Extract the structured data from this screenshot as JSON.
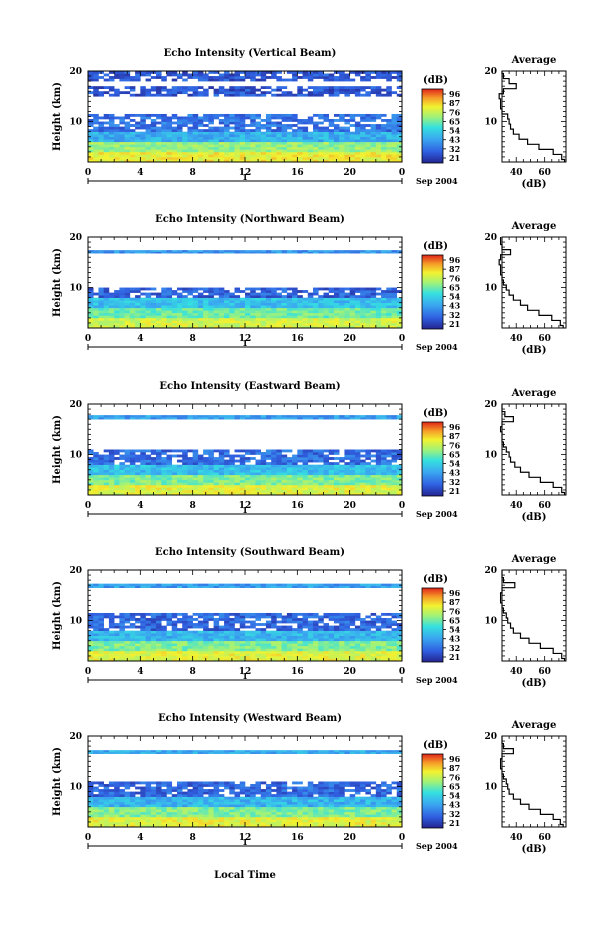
{
  "colorbar_unit": "(dB)",
  "colorbar_ticks": [
    "96",
    "87",
    "76",
    "65",
    "54",
    "43",
    "32",
    "21"
  ],
  "time_ticks": [
    "0",
    "4",
    "8",
    "12",
    "16",
    "20",
    "0"
  ],
  "date_label": "Sep 2004",
  "day_label": "1",
  "ylabel": "Height (km)",
  "xlabel": "Local Time",
  "avg_title": "Average",
  "avg_xlabel": "(dB)",
  "avg_xticks": [
    "40",
    "60"
  ],
  "colors": {
    "low": "#2a2aa8",
    "mid": "#33d6e6",
    "high": "#f2f230",
    "top": "#e6301e"
  },
  "chart_data": [
    {
      "type": "heatmap",
      "title": "Echo Intensity (Vertical Beam)",
      "x_unit": "hour (Local Time)",
      "xlim": [
        0,
        24
      ],
      "y_unit": "km",
      "ylim": [
        2,
        20
      ],
      "yticks": [
        10,
        20
      ],
      "color_range_db": [
        21,
        96
      ],
      "layers": [
        {
          "h0": 2,
          "h1": 4,
          "db": 76
        },
        {
          "h0": 4,
          "h1": 6,
          "db": 65
        },
        {
          "h0": 6,
          "h1": 8,
          "db": 45
        },
        {
          "h0": 8,
          "h1": 11.5,
          "db": 35
        },
        {
          "h0": 11.5,
          "h1": 15,
          "db": 0
        },
        {
          "h0": 15,
          "h1": 17,
          "db": 30
        },
        {
          "h0": 17,
          "h1": 18,
          "db": 0
        },
        {
          "h0": 18,
          "h1": 20,
          "db": 30
        }
      ],
      "average_profile": {
        "type": "line",
        "xlim": [
          30,
          75
        ],
        "height_km": [
          2,
          3,
          4,
          5,
          6,
          7,
          8,
          9,
          10,
          11,
          12,
          13,
          14,
          15,
          16,
          17,
          18,
          19,
          20
        ],
        "db": [
          74,
          72,
          66,
          56,
          48,
          42,
          38,
          36,
          35,
          34,
          30,
          29,
          29,
          28,
          31,
          40,
          35,
          31,
          30
        ]
      }
    },
    {
      "type": "heatmap",
      "title": "Echo Intensity (Northward Beam)",
      "x_unit": "hour (Local Time)",
      "xlim": [
        0,
        24
      ],
      "y_unit": "km",
      "ylim": [
        2,
        20
      ],
      "yticks": [
        10,
        20
      ],
      "color_range_db": [
        21,
        96
      ],
      "layers": [
        {
          "h0": 2,
          "h1": 4,
          "db": 72
        },
        {
          "h0": 4,
          "h1": 6,
          "db": 60
        },
        {
          "h0": 6,
          "h1": 8,
          "db": 48
        },
        {
          "h0": 8,
          "h1": 10,
          "db": 32
        },
        {
          "h0": 10,
          "h1": 16.8,
          "db": 0
        },
        {
          "h0": 16.8,
          "h1": 17.4,
          "db": 40
        },
        {
          "h0": 17.4,
          "h1": 20,
          "db": 0
        }
      ],
      "average_profile": {
        "type": "line",
        "xlim": [
          30,
          75
        ],
        "height_km": [
          2,
          3,
          4,
          5,
          6,
          7,
          8,
          9,
          10,
          11,
          12,
          13,
          14,
          15,
          16,
          17,
          18,
          19,
          20
        ],
        "db": [
          73,
          71,
          65,
          56,
          48,
          43,
          38,
          35,
          33,
          31,
          30,
          29,
          29,
          28,
          29,
          36,
          30,
          29,
          29
        ]
      }
    },
    {
      "type": "heatmap",
      "title": "Echo Intensity (Eastward Beam)",
      "x_unit": "hour (Local Time)",
      "xlim": [
        0,
        24
      ],
      "y_unit": "km",
      "ylim": [
        2,
        20
      ],
      "yticks": [
        10,
        20
      ],
      "color_range_db": [
        21,
        96
      ],
      "layers": [
        {
          "h0": 2,
          "h1": 4,
          "db": 74
        },
        {
          "h0": 4,
          "h1": 6,
          "db": 62
        },
        {
          "h0": 6,
          "h1": 8,
          "db": 48
        },
        {
          "h0": 8,
          "h1": 11,
          "db": 34
        },
        {
          "h0": 11,
          "h1": 17,
          "db": 0
        },
        {
          "h0": 17,
          "h1": 17.8,
          "db": 42
        },
        {
          "h0": 17.8,
          "h1": 20,
          "db": 0
        }
      ],
      "average_profile": {
        "type": "line",
        "xlim": [
          30,
          75
        ],
        "height_km": [
          2,
          3,
          4,
          5,
          6,
          7,
          8,
          9,
          10,
          11,
          12,
          13,
          14,
          15,
          16,
          17,
          18,
          19,
          20
        ],
        "db": [
          74,
          72,
          66,
          57,
          49,
          43,
          39,
          36,
          35,
          33,
          31,
          30,
          30,
          29,
          30,
          38,
          32,
          30,
          30
        ]
      }
    },
    {
      "type": "heatmap",
      "title": "Echo Intensity (Southward Beam)",
      "x_unit": "hour (Local Time)",
      "xlim": [
        0,
        24
      ],
      "y_unit": "km",
      "ylim": [
        2,
        20
      ],
      "yticks": [
        10,
        20
      ],
      "color_range_db": [
        21,
        96
      ],
      "layers": [
        {
          "h0": 2,
          "h1": 4,
          "db": 74
        },
        {
          "h0": 4,
          "h1": 6,
          "db": 62
        },
        {
          "h0": 6,
          "h1": 8,
          "db": 46
        },
        {
          "h0": 8,
          "h1": 11.5,
          "db": 33
        },
        {
          "h0": 11.5,
          "h1": 16.5,
          "db": 0
        },
        {
          "h0": 16.5,
          "h1": 17.3,
          "db": 42
        },
        {
          "h0": 17.3,
          "h1": 20,
          "db": 0
        }
      ],
      "average_profile": {
        "type": "line",
        "xlim": [
          30,
          75
        ],
        "height_km": [
          2,
          3,
          4,
          5,
          6,
          7,
          8,
          9,
          10,
          11,
          12,
          13,
          14,
          15,
          16,
          17,
          18,
          19,
          20
        ],
        "db": [
          74,
          72,
          66,
          57,
          49,
          43,
          38,
          36,
          34,
          33,
          31,
          30,
          29,
          29,
          30,
          39,
          31,
          30,
          30
        ]
      }
    },
    {
      "type": "heatmap",
      "title": "Echo Intensity (Westward Beam)",
      "x_unit": "hour (Local Time)",
      "xlim": [
        0,
        24
      ],
      "y_unit": "km",
      "ylim": [
        2,
        20
      ],
      "yticks": [
        10,
        20
      ],
      "color_range_db": [
        21,
        96
      ],
      "layers": [
        {
          "h0": 2,
          "h1": 4,
          "db": 74
        },
        {
          "h0": 4,
          "h1": 6,
          "db": 62
        },
        {
          "h0": 6,
          "h1": 8,
          "db": 46
        },
        {
          "h0": 8,
          "h1": 11,
          "db": 33
        },
        {
          "h0": 11,
          "h1": 16.5,
          "db": 0
        },
        {
          "h0": 16.5,
          "h1": 17.2,
          "db": 44
        },
        {
          "h0": 17.2,
          "h1": 20,
          "db": 0
        }
      ],
      "average_profile": {
        "type": "line",
        "xlim": [
          30,
          75
        ],
        "height_km": [
          2,
          3,
          4,
          5,
          6,
          7,
          8,
          9,
          10,
          11,
          12,
          13,
          14,
          15,
          16,
          17,
          18,
          19,
          20
        ],
        "db": [
          73,
          71,
          66,
          57,
          49,
          43,
          38,
          35,
          34,
          33,
          31,
          30,
          29,
          29,
          30,
          38,
          31,
          30,
          30
        ]
      }
    }
  ]
}
